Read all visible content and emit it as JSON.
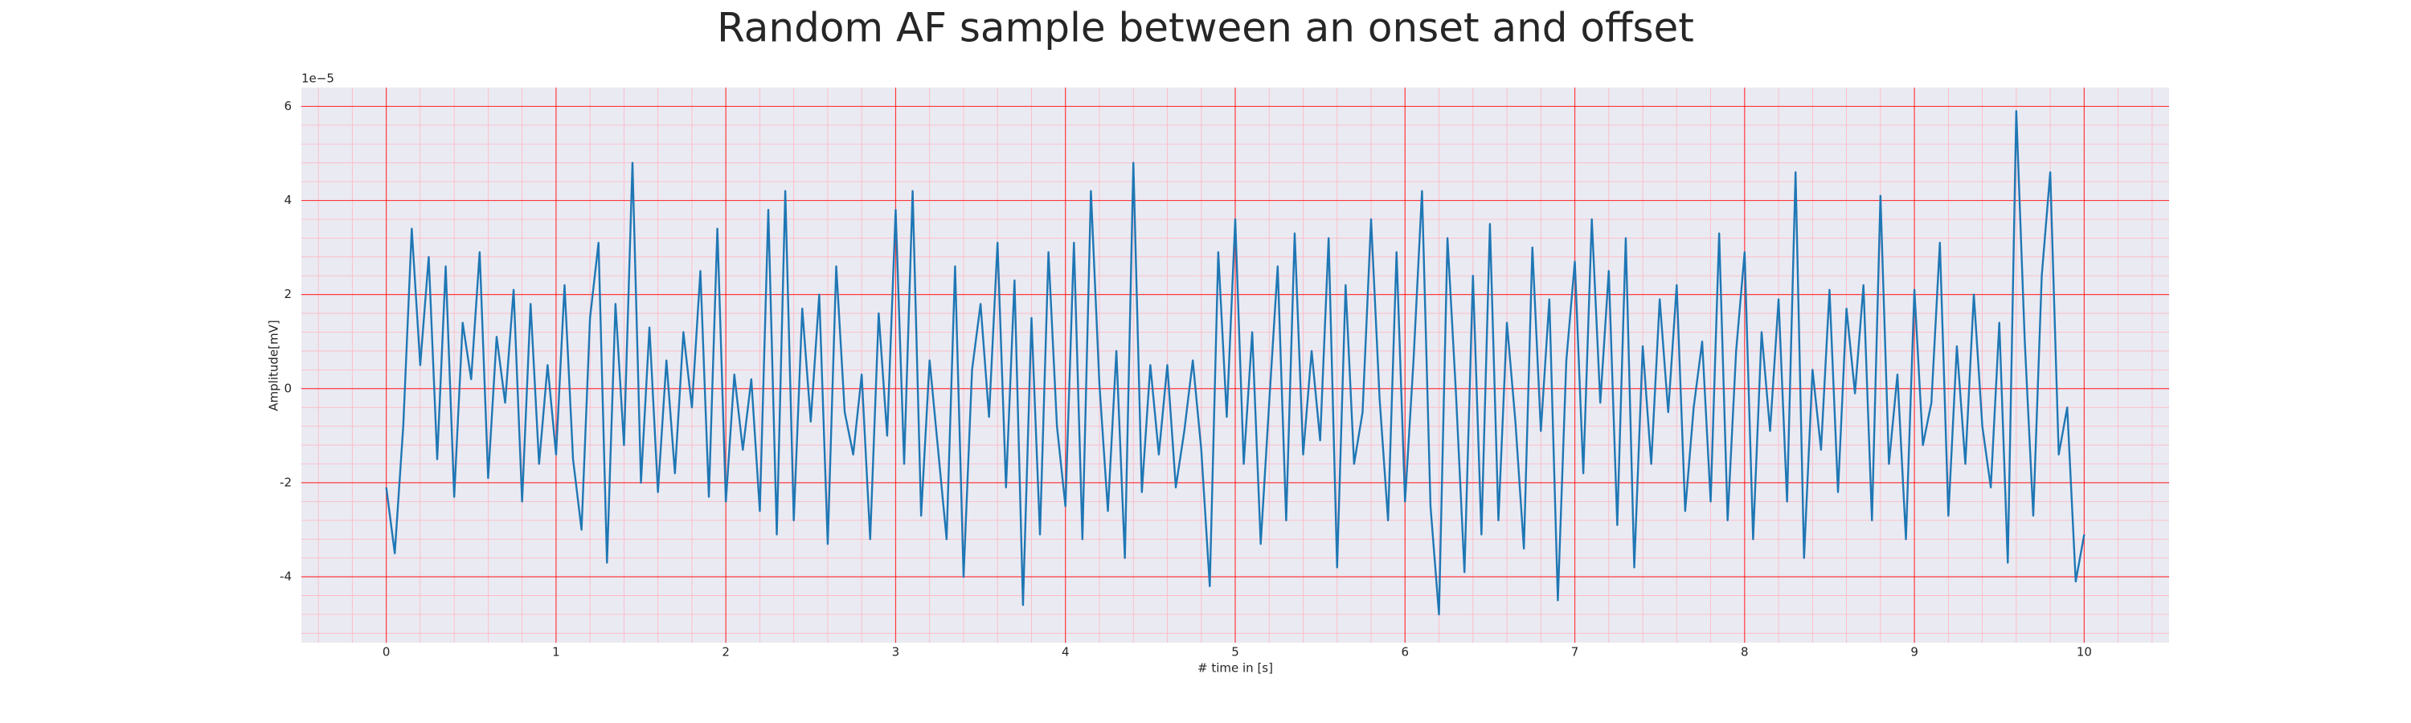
{
  "chart_data": {
    "type": "line",
    "title": "Random AF sample between an onset and offset",
    "xlabel": "# time in [s]",
    "ylabel": "Amplitude[mV]",
    "y_offset_label": "1e−5",
    "x": [
      0,
      0.05,
      0.1,
      0.15,
      0.2,
      0.25,
      0.3,
      0.35,
      0.4,
      0.45,
      0.5,
      0.55,
      0.6,
      0.65,
      0.7,
      0.75,
      0.8,
      0.85,
      0.9,
      0.95,
      1,
      1.05,
      1.1,
      1.15,
      1.2,
      1.25,
      1.3,
      1.35,
      1.4,
      1.45,
      1.5,
      1.55,
      1.6,
      1.65,
      1.7,
      1.75,
      1.8,
      1.85,
      1.9,
      1.95,
      2,
      2.05,
      2.1,
      2.15,
      2.2,
      2.25,
      2.3,
      2.35,
      2.4,
      2.45,
      2.5,
      2.55,
      2.6,
      2.65,
      2.7,
      2.75,
      2.8,
      2.85,
      2.9,
      2.95,
      3,
      3.05,
      3.1,
      3.15,
      3.2,
      3.25,
      3.3,
      3.35,
      3.4,
      3.45,
      3.5,
      3.55,
      3.6,
      3.65,
      3.7,
      3.75,
      3.8,
      3.85,
      3.9,
      3.95,
      4,
      4.05,
      4.1,
      4.15,
      4.2,
      4.25,
      4.3,
      4.35,
      4.4,
      4.45,
      4.5,
      4.55,
      4.6,
      4.65,
      4.7,
      4.75,
      4.8,
      4.85,
      4.9,
      4.95,
      5,
      5.05,
      5.1,
      5.15,
      5.2,
      5.25,
      5.3,
      5.35,
      5.4,
      5.45,
      5.5,
      5.55,
      5.6,
      5.65,
      5.7,
      5.75,
      5.8,
      5.85,
      5.9,
      5.95,
      6,
      6.05,
      6.1,
      6.15,
      6.2,
      6.25,
      6.3,
      6.35,
      6.4,
      6.45,
      6.5,
      6.55,
      6.6,
      6.65,
      6.7,
      6.75,
      6.8,
      6.85,
      6.9,
      6.95,
      7,
      7.05,
      7.1,
      7.15,
      7.2,
      7.25,
      7.3,
      7.35,
      7.4,
      7.45,
      7.5,
      7.55,
      7.6,
      7.65,
      7.7,
      7.75,
      7.8,
      7.85,
      7.9,
      7.95,
      8,
      8.05,
      8.1,
      8.15,
      8.2,
      8.25,
      8.3,
      8.35,
      8.4,
      8.45,
      8.5,
      8.55,
      8.6,
      8.65,
      8.7,
      8.75,
      8.8,
      8.85,
      8.9,
      8.95,
      9,
      9.05,
      9.1,
      9.15,
      9.2,
      9.25,
      9.3,
      9.35,
      9.4,
      9.45,
      9.5,
      9.55,
      9.6,
      9.65,
      9.7,
      9.75,
      9.8,
      9.85,
      9.9,
      9.95,
      10
    ],
    "series": [
      {
        "color": "#1f77b4",
        "values": [
          -2.1,
          -3.5,
          -0.8,
          3.4,
          0.5,
          2.8,
          -1.5,
          2.6,
          -2.3,
          1.4,
          0.2,
          2.9,
          -1.9,
          1.1,
          -0.3,
          2.1,
          -2.4,
          1.8,
          -1.6,
          0.5,
          -1.4,
          2.2,
          -1.5,
          -3.0,
          1.5,
          3.1,
          -3.7,
          1.8,
          -1.2,
          4.8,
          -2.0,
          1.3,
          -2.2,
          0.6,
          -1.8,
          1.2,
          -0.4,
          2.5,
          -2.3,
          3.4,
          -2.4,
          0.3,
          -1.3,
          0.2,
          -2.6,
          3.8,
          -3.1,
          4.2,
          -2.8,
          1.7,
          -0.7,
          2.0,
          -3.3,
          2.6,
          -0.5,
          -1.4,
          0.3,
          -3.2,
          1.6,
          -1.0,
          3.8,
          -1.6,
          4.2,
          -2.7,
          0.6,
          -1.3,
          -3.2,
          2.6,
          -4.0,
          0.4,
          1.8,
          -0.6,
          3.1,
          -2.1,
          2.3,
          -4.6,
          1.5,
          -3.1,
          2.9,
          -0.8,
          -2.5,
          3.1,
          -3.2,
          4.2,
          0.1,
          -2.6,
          0.8,
          -3.6,
          4.8,
          -2.2,
          0.5,
          -1.4,
          0.5,
          -2.1,
          -0.9,
          0.6,
          -1.3,
          -4.2,
          2.9,
          -0.6,
          3.6,
          -1.6,
          1.2,
          -3.3,
          -0.3,
          2.6,
          -2.8,
          3.3,
          -1.4,
          0.8,
          -1.1,
          3.2,
          -3.8,
          2.2,
          -1.6,
          -0.5,
          3.6,
          -0.2,
          -2.8,
          2.9,
          -2.4,
          0.6,
          4.2,
          -2.5,
          -4.8,
          3.2,
          -0.1,
          -3.9,
          2.4,
          -3.1,
          3.5,
          -2.8,
          1.4,
          -0.7,
          -3.4,
          3.0,
          -0.9,
          1.9,
          -4.5,
          0.6,
          2.7,
          -1.8,
          3.6,
          -0.3,
          2.5,
          -2.9,
          3.2,
          -3.8,
          0.9,
          -1.6,
          1.9,
          -0.5,
          2.2,
          -2.6,
          -0.4,
          1.0,
          -2.4,
          3.3,
          -2.8,
          0.8,
          2.9,
          -3.2,
          1.2,
          -0.9,
          1.9,
          -2.4,
          4.6,
          -3.6,
          0.4,
          -1.3,
          2.1,
          -2.2,
          1.7,
          -0.1,
          2.2,
          -2.8,
          4.1,
          -1.6,
          0.3,
          -3.2,
          2.1,
          -1.2,
          -0.3,
          3.1,
          -2.7,
          0.9,
          -1.6,
          2.0,
          -0.8,
          -2.1,
          1.4,
          -3.7,
          5.9,
          1.0,
          -2.7,
          2.4,
          4.6,
          -1.4,
          -0.4,
          -4.1,
          -3.1
        ]
      }
    ],
    "xlim": [
      -0.5,
      10.5
    ],
    "ylim": [
      -5.4,
      6.4
    ],
    "xticks": [
      0,
      1,
      2,
      3,
      4,
      5,
      6,
      7,
      8,
      9,
      10
    ],
    "yticks": [
      -4,
      -2,
      0,
      2,
      4,
      6
    ],
    "grid": true,
    "minor_grid": true,
    "grid_color": "#ff0000",
    "minor_grid_color": "#ffb6c1",
    "facecolor": "#eaeaf2"
  }
}
